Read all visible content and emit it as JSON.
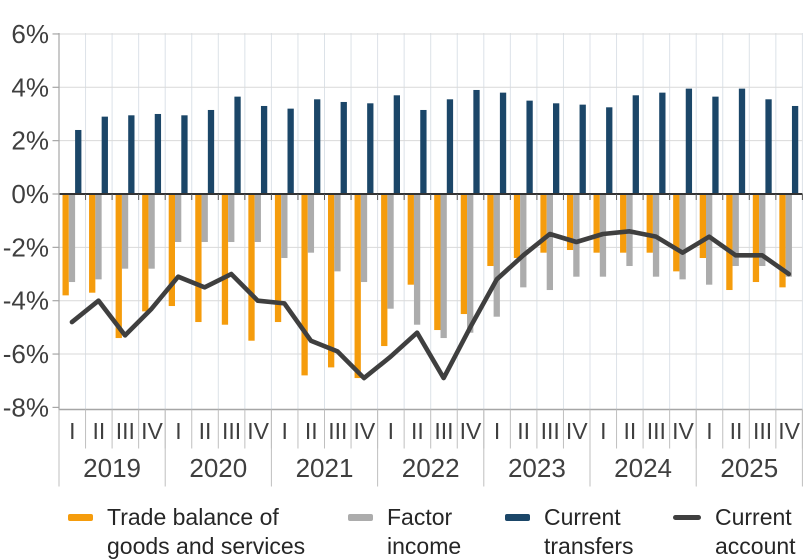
{
  "chart_data": {
    "type": "bar",
    "subtype": "grouped-bars-with-line-overlay",
    "title": "",
    "xlabel": "",
    "ylabel": "",
    "ylim": [
      -8,
      6
    ],
    "ytick_labels": [
      "6%",
      "4%",
      "2%",
      "0%",
      "-2%",
      "-4%",
      "-6%",
      "-8%"
    ],
    "ytick_values": [
      6,
      4,
      2,
      0,
      -2,
      -4,
      -6,
      -8
    ],
    "grid": "horizontal-and-vertical-light",
    "legend_position": "bottom",
    "years": [
      "2019",
      "2020",
      "2021",
      "2022",
      "2023",
      "2024",
      "2025"
    ],
    "quarter_labels": [
      "I",
      "II",
      "III",
      "IV"
    ],
    "unit": "% of GDP",
    "series": [
      {
        "name": "Trade balance of goods and services",
        "type": "bar",
        "color": "#F59C0C",
        "values": [
          -3.8,
          -3.7,
          -5.4,
          -4.4,
          -4.2,
          -4.8,
          -4.9,
          -5.5,
          -4.8,
          -6.8,
          -6.5,
          -6.9,
          -5.7,
          -3.4,
          -5.1,
          -4.5,
          -2.7,
          -2.4,
          -2.2,
          -2.1,
          -2.2,
          -2.2,
          -2.2,
          -2.9,
          -2.4,
          -3.6,
          -3.3,
          -3.5
        ]
      },
      {
        "name": "Factor income",
        "type": "bar",
        "color": "#ACACAC",
        "values": [
          -3.3,
          -3.2,
          -2.8,
          -2.8,
          -1.8,
          -1.8,
          -1.8,
          -1.8,
          -2.4,
          -2.2,
          -2.9,
          -3.3,
          -4.3,
          -4.9,
          -5.4,
          -5.2,
          -4.6,
          -3.5,
          -3.6,
          -3.1,
          -3.1,
          -2.7,
          -3.1,
          -3.2,
          -3.4,
          -2.7,
          -2.7,
          -3.1
        ]
      },
      {
        "name": "Current transfers",
        "type": "bar",
        "color": "#1B4668",
        "values": [
          2.4,
          2.9,
          2.95,
          3.0,
          2.95,
          3.15,
          3.65,
          3.3,
          3.2,
          3.55,
          3.45,
          3.4,
          3.7,
          3.15,
          3.55,
          3.9,
          3.8,
          3.5,
          3.4,
          3.35,
          3.25,
          3.7,
          3.8,
          3.95,
          3.65,
          3.95,
          3.55,
          3.3
        ]
      },
      {
        "name": "Current account",
        "type": "line",
        "color": "#3F3F3F",
        "values": [
          -4.8,
          -4.0,
          -5.3,
          -4.3,
          -3.1,
          -3.5,
          -3.0,
          -4.0,
          -4.1,
          -5.5,
          -5.9,
          -6.9,
          -6.1,
          -5.2,
          -6.9,
          -5.0,
          -3.2,
          -2.3,
          -1.5,
          -1.8,
          -1.5,
          -1.4,
          -1.6,
          -2.2,
          -1.6,
          -2.3,
          -2.3,
          -3.0
        ]
      }
    ]
  },
  "legend": {
    "items": [
      {
        "label": "Trade balance of\ngoods and services",
        "swatch": "bar"
      },
      {
        "label": "Factor\nincome",
        "swatch": "bar"
      },
      {
        "label": "Current\ntransfers",
        "swatch": "bar"
      },
      {
        "label": "Current\naccount",
        "swatch": "line"
      }
    ]
  },
  "colors": {
    "axis_text": "#3F3F3F",
    "zero_line": "#333333",
    "axis_line": "#A6A6A6",
    "h_grid": "#D9D9D9",
    "v_grid": "#DCE2E8",
    "separator": "#BFBFBF",
    "background": "#FFFFFF"
  }
}
